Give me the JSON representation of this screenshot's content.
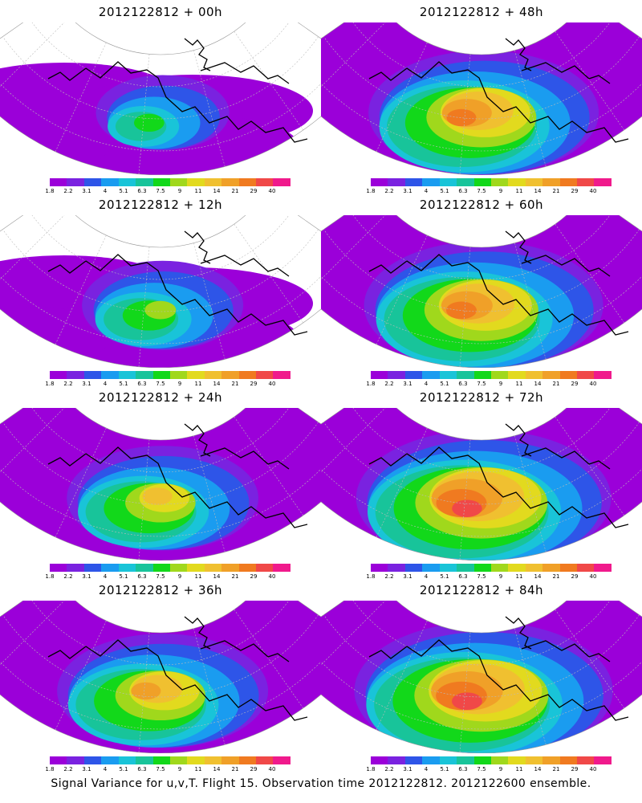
{
  "panels": [
    {
      "title": "2012122812 + 00h",
      "level": 0.25
    },
    {
      "title": "2012122812 + 48h",
      "level": 0.75
    },
    {
      "title": "2012122812 + 12h",
      "level": 0.4
    },
    {
      "title": "2012122812 + 60h",
      "level": 0.8
    },
    {
      "title": "2012122812 + 24h",
      "level": 0.55
    },
    {
      "title": "2012122812 + 72h",
      "level": 0.88
    },
    {
      "title": "2012122812 + 36h",
      "level": 0.65
    },
    {
      "title": "2012122812 + 84h",
      "level": 0.9
    }
  ],
  "colorbar": {
    "colors": [
      "#9b00d9",
      "#7a22e0",
      "#2e55e8",
      "#1a9cf0",
      "#19c4d8",
      "#18c49a",
      "#12d81a",
      "#a0d81c",
      "#e2da1e",
      "#f0c030",
      "#f0a028",
      "#f07a20",
      "#f04848",
      "#f01a8c"
    ],
    "labels": [
      "1.8",
      "2.2",
      "3.1",
      "4",
      "5.1",
      "6.3",
      "7.5",
      "9",
      "11",
      "14",
      "21",
      "29",
      "40"
    ]
  },
  "caption": "Signal Variance for u,v,T. Flight 15. Observation time 2012122812. 2012122600 ensemble."
}
